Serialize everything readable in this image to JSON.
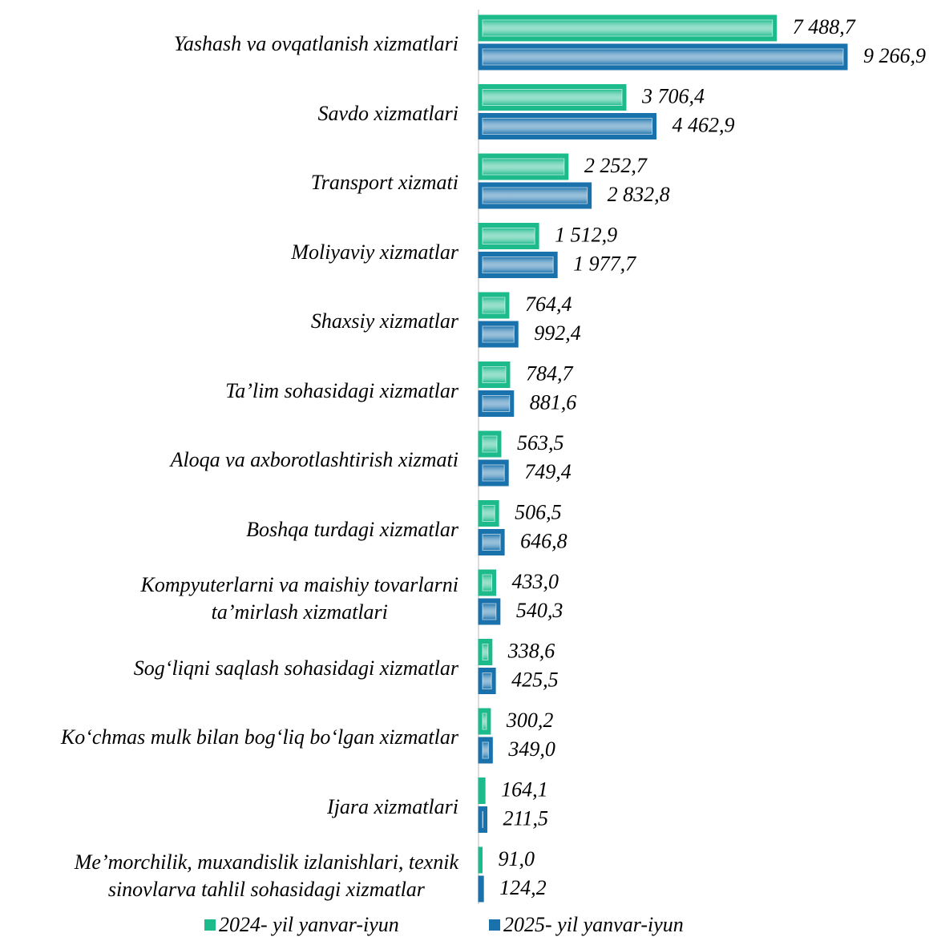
{
  "chart_data": {
    "type": "bar",
    "orientation": "horizontal",
    "categories": [
      "Yashash va ovqatlanish xizmatlari",
      "Savdo xizmatlari",
      "Transport xizmati",
      "Moliyaviy xizmatlar",
      "Shaxsiy xizmatlar",
      "Ta’lim sohasidagi xizmatlar",
      "Aloqa va axborotlashtirish xizmati",
      "Boshqa turdagi xizmatlar",
      "Kompyuterlarni va maishiy tovarlarni\nta’mirlash xizmatlari",
      "Sog‘liqni saqlash sohasidagi xizmatlar",
      "Ko‘chmas mulk bilan bog‘liq bo‘lgan xizmatlar",
      "Ijara xizmatlari",
      "Me’morchilik, muxandislik izlanishlari, texnik\nsinovlarva tahlil sohasidagi xizmatlar"
    ],
    "series": [
      {
        "name": "2024- yil yanvar-iyun",
        "color": "#1dbb8c",
        "values": [
          7488.7,
          3706.4,
          2252.7,
          1512.9,
          764.4,
          784.7,
          563.5,
          506.5,
          433.0,
          338.6,
          300.2,
          164.1,
          91.0
        ],
        "value_labels": [
          "7 488,7",
          "3 706,4",
          "2 252,7",
          "1 512,9",
          "764,4",
          "784,7",
          "563,5",
          "506,5",
          "433,0",
          "338,6",
          "300,2",
          "164,1",
          "91,0"
        ]
      },
      {
        "name": "2025- yil yanvar-iyun",
        "color": "#1a72ad",
        "values": [
          9266.9,
          4462.9,
          2832.8,
          1977.7,
          992.4,
          881.6,
          749.4,
          646.8,
          540.3,
          425.5,
          349.0,
          211.5,
          124.2
        ],
        "value_labels": [
          "9 266,9",
          "4 462,9",
          "2 832,8",
          "1 977,7",
          "992,4",
          "881,6",
          "749,4",
          "646,8",
          "540,3",
          "425,5",
          "349,0",
          "211,5",
          "124,2"
        ]
      }
    ],
    "legend": "bottom"
  }
}
